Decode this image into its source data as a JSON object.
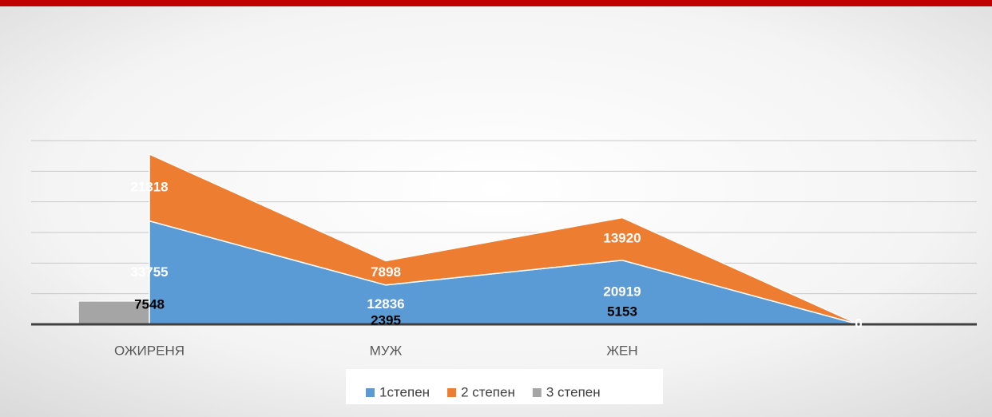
{
  "chart_data": {
    "type": "stacked-area-bar",
    "categories": [
      "ОЖИРЕНЯ",
      "МУЖ",
      "ЖЕН",
      null
    ],
    "series": [
      {
        "name": "1степен",
        "color": "#5b9bd5",
        "kind": "area",
        "values": [
          33755,
          12836,
          20919,
          0
        ]
      },
      {
        "name": "2 степен",
        "color": "#ed7d31",
        "kind": "area",
        "values": [
          21818,
          7898,
          13920,
          0
        ]
      },
      {
        "name": "3 степен",
        "color": "#a5a5a5",
        "kind": "bar",
        "values": [
          7548,
          2395,
          5153,
          null
        ]
      }
    ],
    "ylim": [
      0,
      60000
    ],
    "yticks": [
      0,
      10000,
      20000,
      30000,
      40000,
      50000,
      60000
    ],
    "grid": true
  }
}
